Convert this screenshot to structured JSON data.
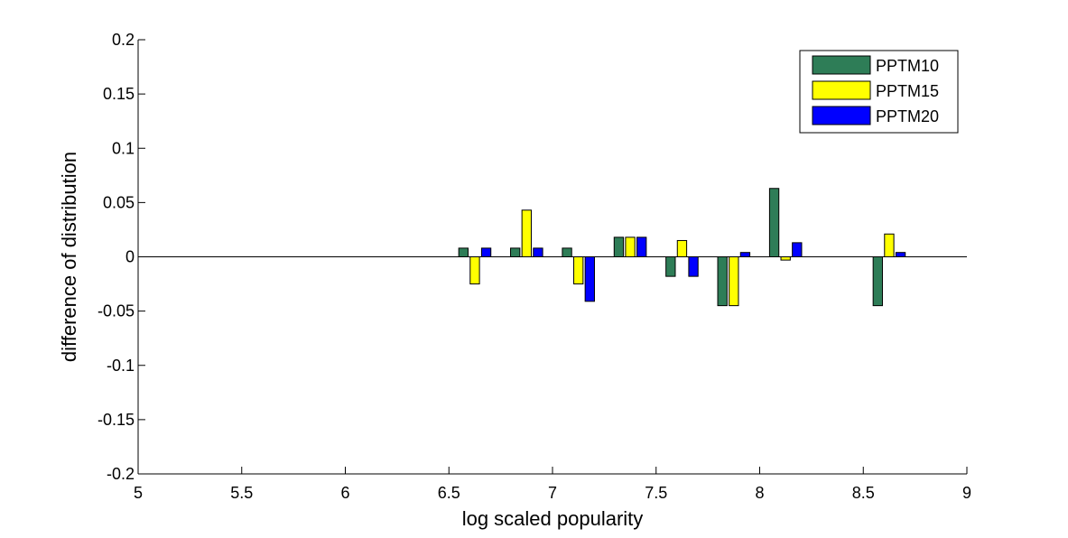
{
  "chart_data": {
    "type": "bar",
    "xlabel": "log scaled popularity",
    "ylabel": "difference of distribution",
    "xlim": [
      5,
      9
    ],
    "ylim": [
      -0.2,
      0.2
    ],
    "x_ticks": [
      "5",
      "5.5",
      "6",
      "6.5",
      "7",
      "7.5",
      "8",
      "8.5",
      "9"
    ],
    "y_ticks": [
      "0.2",
      "0.15",
      "0.1",
      "0.05",
      "0",
      "-0.05",
      "-0.1",
      "-0.15",
      "-0.2"
    ],
    "legend_position": "top-right",
    "grid": false,
    "categories": [
      6.625,
      6.875,
      7.125,
      7.375,
      7.625,
      7.875,
      8.125,
      8.625
    ],
    "series": [
      {
        "name": "PPTM10",
        "color": "#2E7D57",
        "values": [
          0.008,
          0.008,
          0.008,
          0.018,
          -0.018,
          -0.045,
          0.063,
          -0.045
        ]
      },
      {
        "name": "PPTM15",
        "color": "#FFFF00",
        "values": [
          -0.025,
          0.043,
          -0.025,
          0.018,
          0.015,
          -0.045,
          -0.003,
          0.021
        ]
      },
      {
        "name": "PPTM20",
        "color": "#0000FF",
        "values": [
          0.008,
          0.008,
          -0.041,
          0.018,
          -0.018,
          0.004,
          0.013,
          0.004
        ]
      }
    ]
  }
}
